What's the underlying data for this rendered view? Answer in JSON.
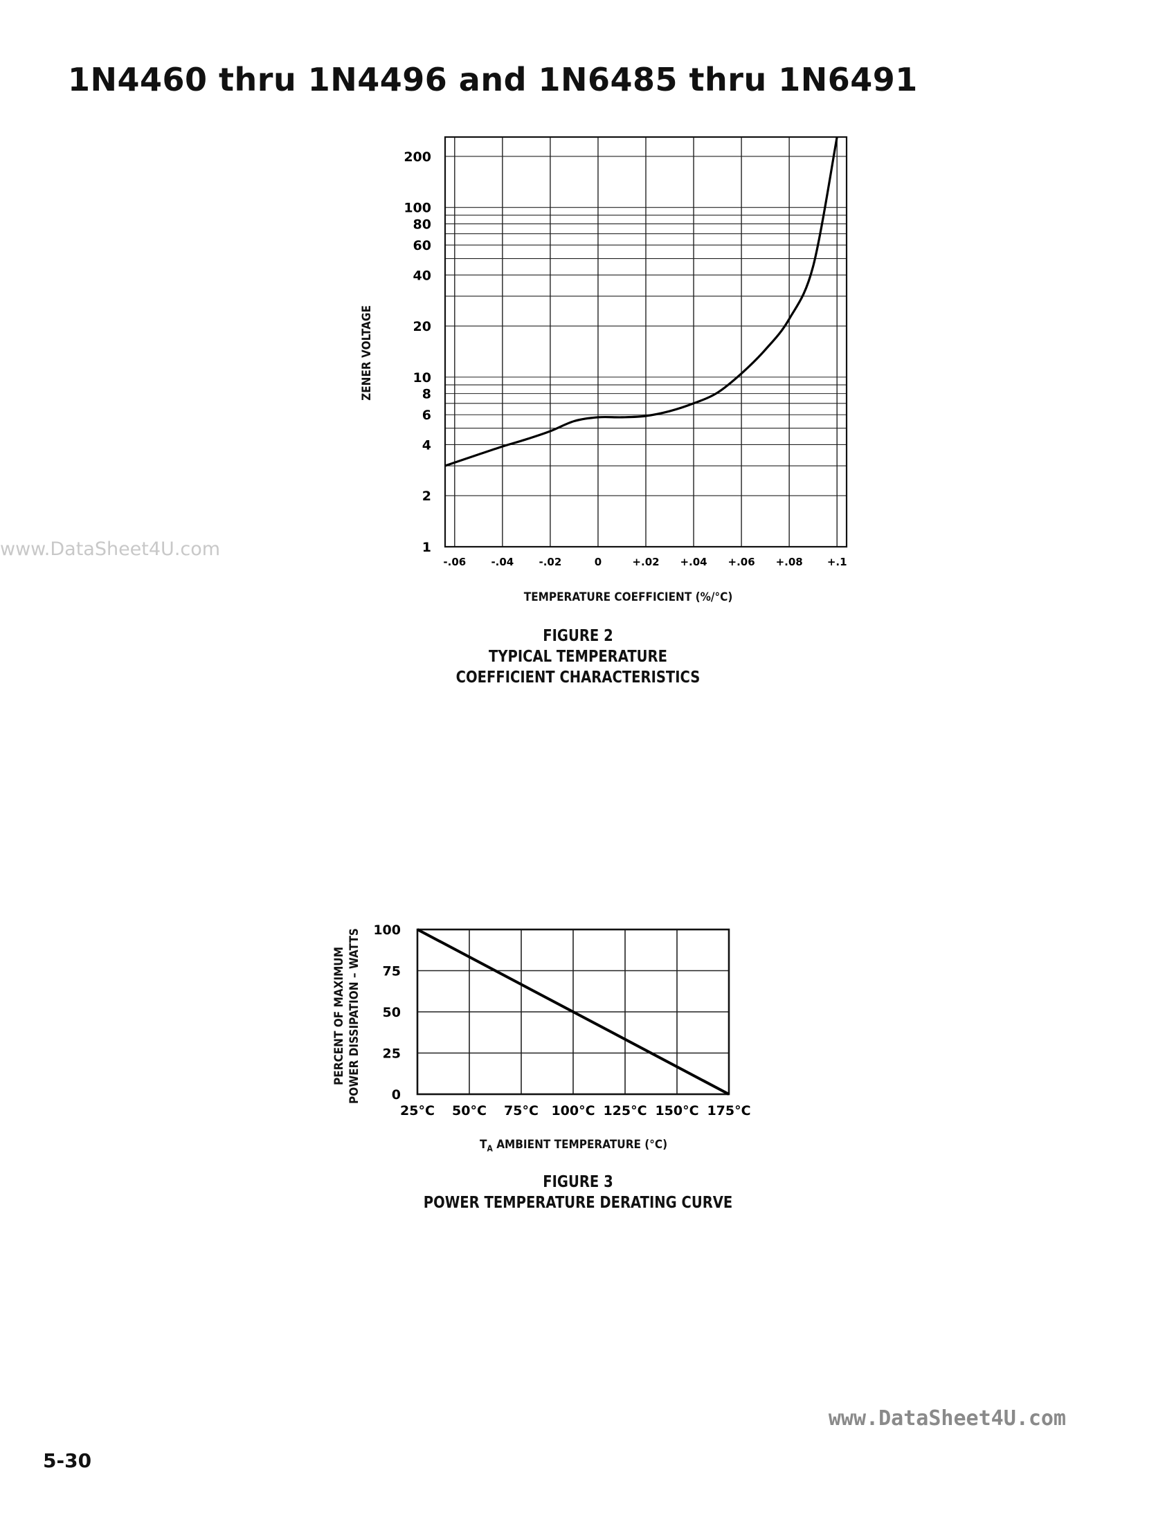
{
  "page": {
    "title": "1N4460 thru 1N4496 and 1N6485 thru 1N6491",
    "watermark_left": "www.DataSheet4U.com",
    "watermark_right": "www.DataSheet4U.com",
    "page_number": "5-30"
  },
  "figure2": {
    "caption_line1": "FIGURE 2",
    "caption_line2": "TYPICAL TEMPERATURE",
    "caption_line3": "COEFFICIENT CHARACTERISTICS"
  },
  "figure3": {
    "caption_line1": "FIGURE 3",
    "caption_line2": "POWER TEMPERATURE DERATING CURVE"
  },
  "chart_data": [
    {
      "type": "line",
      "xlabel": "TEMPERATURE COEFFICIENT (%/°C)",
      "ylabel": "ZENER VOLTAGE",
      "y_scale": "log",
      "xlim": [
        -0.064,
        0.104
      ],
      "ylim": [
        1,
        260
      ],
      "grid": true,
      "x_ticks": [
        "-.06",
        "-.04",
        "-.02",
        "0",
        "+.02",
        "+.04",
        "+.06",
        "+.08",
        "+.1"
      ],
      "x_tick_values": [
        -0.06,
        -0.04,
        -0.02,
        0,
        0.02,
        0.04,
        0.06,
        0.08,
        0.1
      ],
      "y_ticks": [
        "1",
        "2",
        "4",
        "6",
        "8",
        "10",
        "20",
        "40",
        "60",
        "80",
        "100",
        "200"
      ],
      "y_tick_values": [
        1,
        2,
        4,
        6,
        8,
        10,
        20,
        40,
        60,
        80,
        100,
        200
      ],
      "series": [
        {
          "x": [
            -0.064,
            -0.05,
            -0.04,
            -0.03,
            -0.02,
            -0.01,
            0.0,
            0.01,
            0.02,
            0.03,
            0.04,
            0.05,
            0.06,
            0.07,
            0.08,
            0.09,
            0.1
          ],
          "y": [
            3.0,
            3.5,
            3.9,
            4.3,
            4.8,
            5.5,
            5.8,
            5.8,
            5.9,
            6.3,
            7.0,
            8.1,
            10.5,
            14.5,
            22,
            45,
            260
          ]
        }
      ]
    },
    {
      "type": "line",
      "xlabel": "T_A AMBIENT TEMPERATURE (°C)",
      "ylabel_line1": "PERCENT OF MAXIMUM",
      "ylabel_line2": "POWER DISSIPATION – WATTS",
      "xlim": [
        25,
        175
      ],
      "ylim": [
        0,
        100
      ],
      "grid": true,
      "x_ticks": [
        "25°C",
        "50°C",
        "75°C",
        "100°C",
        "125°C",
        "150°C",
        "175°C"
      ],
      "x_tick_values": [
        25,
        50,
        75,
        100,
        125,
        150,
        175
      ],
      "y_ticks": [
        "0",
        "25",
        "50",
        "75",
        "100"
      ],
      "y_tick_values": [
        0,
        25,
        50,
        75,
        100
      ],
      "series": [
        {
          "x": [
            25,
            175
          ],
          "y": [
            100,
            0
          ]
        }
      ]
    }
  ]
}
